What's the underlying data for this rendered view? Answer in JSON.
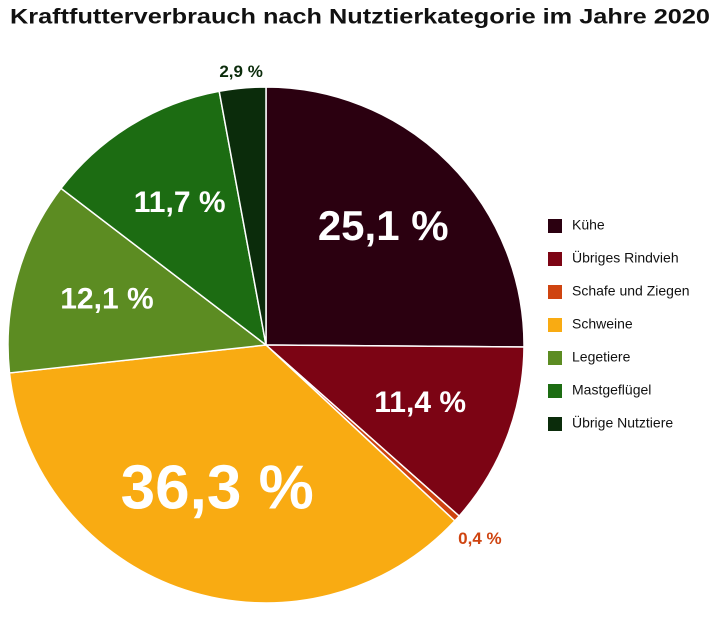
{
  "chart_data": {
    "type": "pie",
    "title": "Kraftfutterverbrauch nach Nutztierkategorie im Jahre 2020",
    "categories": [
      "Kühe",
      "Übriges Rindvieh",
      "Schafe und Ziegen",
      "Schweine",
      "Legetiere",
      "Mastgeflügel",
      "Übrige Nutztiere"
    ],
    "values": [
      25.1,
      11.4,
      0.4,
      36.3,
      12.1,
      11.7,
      2.9
    ],
    "value_labels": [
      "25,1 %",
      "11,4 %",
      "0,4 %",
      "36,3 %",
      "12,1 %",
      "11,7 %",
      "2,9 %"
    ],
    "colors": [
      "#2b0010",
      "#7c0414",
      "#cf4410",
      "#f9ab12",
      "#5c8c22",
      "#1c6c12",
      "#0b2c0b"
    ],
    "legend": "right"
  }
}
